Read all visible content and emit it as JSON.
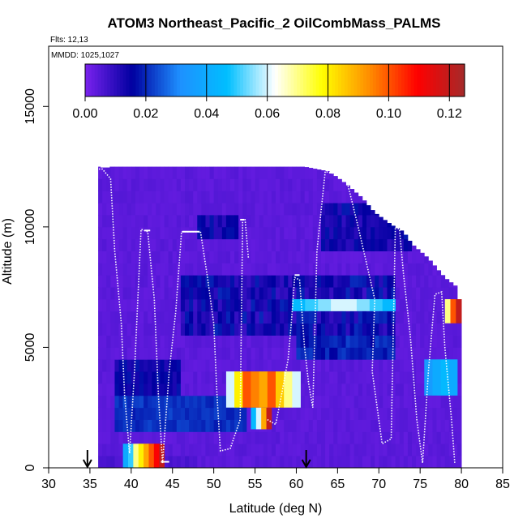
{
  "chart_data": {
    "type": "heatmap",
    "title": "ATOM3 Northeast_Pacific_2 OilCombMass_PALMS",
    "flights_label": "Flts: 12,13",
    "dates_label": "MMDD: 1025,1027",
    "xlabel": "Latitude (deg N)",
    "ylabel": "Altitude (m)",
    "xlim": [
      30,
      85
    ],
    "ylim": [
      0,
      17500
    ],
    "x_ticks": [
      "30",
      "35",
      "40",
      "45",
      "50",
      "55",
      "60",
      "65",
      "70",
      "75",
      "80",
      "85"
    ],
    "y_ticks": [
      "0",
      "5000",
      "10000",
      "15000"
    ],
    "colorbar": {
      "min": 0,
      "max": 0.125,
      "ticks": [
        "0.00",
        "0.02",
        "0.04",
        "0.06",
        "0.08",
        "0.10",
        "0.12"
      ],
      "colors": [
        "#7a22ee",
        "#0000a0",
        "#1e90ff",
        "#00bfff",
        "#ffffff",
        "#ffff00",
        "#ff8c00",
        "#ff0000",
        "#a52a2a"
      ]
    },
    "background_value": 0.004,
    "patches": [
      {
        "lat": [
          39,
          44
        ],
        "alt": [
          0,
          1000
        ],
        "values": [
          0.04,
          0.05,
          0.07,
          0.08,
          0.09,
          0.1,
          0.11,
          0.12
        ]
      },
      {
        "lat": [
          54.5,
          57
        ],
        "alt": [
          1600,
          2500
        ],
        "values": [
          0.045,
          0.06,
          0.09,
          0.12
        ]
      },
      {
        "lat": [
          51.5,
          60.5
        ],
        "alt": [
          2500,
          4000
        ],
        "values": [
          0.06,
          0.08,
          0.1,
          0.095,
          0.09,
          0.1,
          0.085,
          0.07,
          0.06
        ]
      },
      {
        "lat": [
          59.5,
          72
        ],
        "alt": [
          6500,
          7000
        ],
        "values": [
          0.045,
          0.05,
          0.055,
          0.06,
          0.06,
          0.055,
          0.05,
          0.045
        ]
      },
      {
        "lat": [
          75.5,
          79.5
        ],
        "alt": [
          3000,
          4500
        ],
        "values": [
          0.035,
          0.04,
          0.045,
          0.04
        ]
      },
      {
        "lat": [
          78,
          80
        ],
        "alt": [
          6000,
          7000
        ],
        "values": [
          0.07,
          0.1,
          0.12
        ]
      }
    ],
    "arrows_lat": [
      34.7,
      61.2
    ]
  }
}
